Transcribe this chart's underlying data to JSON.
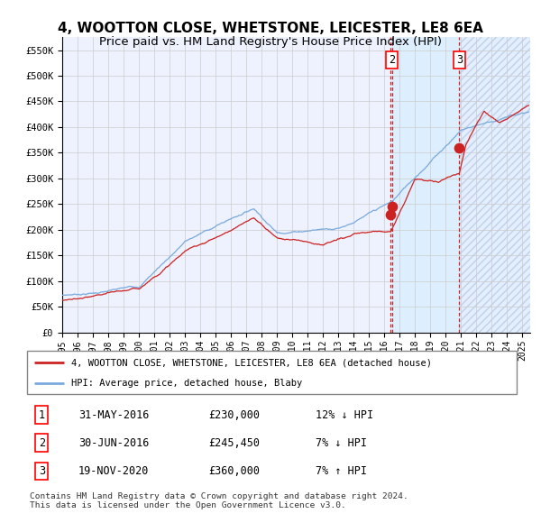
{
  "title1": "4, WOOTTON CLOSE, WHETSTONE, LEICESTER, LE8 6EA",
  "title2": "Price paid vs. HM Land Registry's House Price Index (HPI)",
  "title1_fontsize": 11,
  "title2_fontsize": 9.5,
  "yticks": [
    0,
    50000,
    100000,
    150000,
    200000,
    250000,
    300000,
    350000,
    400000,
    450000,
    500000,
    550000
  ],
  "ytick_labels": [
    "£0",
    "£50K",
    "£100K",
    "£150K",
    "£200K",
    "£250K",
    "£300K",
    "£350K",
    "£400K",
    "£450K",
    "£500K",
    "£550K"
  ],
  "xlim_start": 1995.0,
  "xlim_end": 2025.5,
  "ylim_min": 0,
  "ylim_max": 575000,
  "hpi_color": "#7aaadd",
  "price_color": "#cc2222",
  "sale_marker_color": "#cc2222",
  "vline_color": "#cc2222",
  "shade_color": "#ddeeff",
  "legend_label_red": "4, WOOTTON CLOSE, WHETSTONE, LEICESTER, LE8 6EA (detached house)",
  "legend_label_blue": "HPI: Average price, detached house, Blaby",
  "sale1_date": 2016.41,
  "sale1_price": 230000,
  "sale2_date": 2016.5,
  "sale2_price": 245450,
  "sale3_date": 2020.88,
  "sale3_price": 360000,
  "footer": "Contains HM Land Registry data © Crown copyright and database right 2024.\nThis data is licensed under the Open Government Licence v3.0.",
  "background_color": "#ffffff",
  "plot_bg_color": "#eef2ff",
  "grid_color": "#cccccc"
}
